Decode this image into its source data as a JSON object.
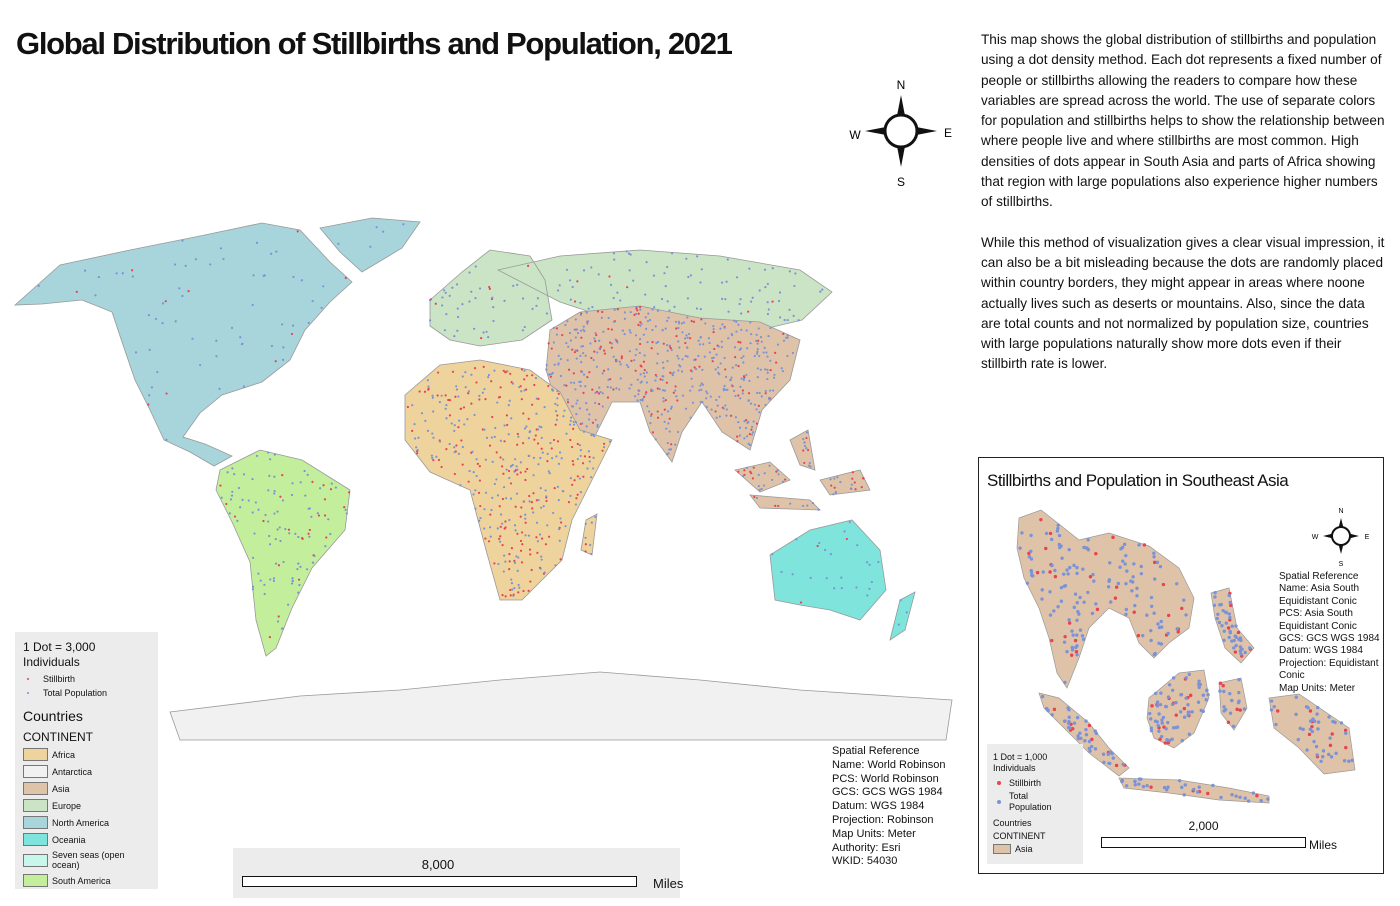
{
  "title": "Global Distribution of Stillbirths and Population, 2021",
  "description": [
    "This map shows the global distribution of stillbirths and population using a dot density method. Each dot represents a fixed number of people or stillbirths allowing the readers to compare how these variables are spread across the world. The use of separate colors for population and stillbirths helps to show the relationship between where people live and where stillbirths are most common. High densities of dots appear in South Asia and parts of Africa showing that region with large populations also experience higher numbers of stillbirths.",
    "While this method of visualization gives a clear visual impression, it can also be a bit misleading because the dots are randomly placed within country borders, they might appear in areas where noone actually lives such as deserts or mountains. Also, since the data are total counts and not normalized by population size, countries with large populations naturally show more dots even if their stillbirth rate is lower."
  ],
  "compass": {
    "n": "N",
    "e": "E",
    "s": "S",
    "w": "W"
  },
  "legend": {
    "dot_title": "1 Dot = 3,000 Individuals",
    "dots": [
      {
        "name": "Stillbirth",
        "color": "#e8434f"
      },
      {
        "name": "Total Population",
        "color": "#7b93d6"
      }
    ],
    "layer_title": "Countries",
    "field_title": "CONTINENT",
    "continents": [
      {
        "name": "Africa",
        "color": "#efd39d"
      },
      {
        "name": "Antarctica",
        "color": "#f1f1f1"
      },
      {
        "name": "Asia",
        "color": "#dfc3a9"
      },
      {
        "name": "Europe",
        "color": "#cbe4c5"
      },
      {
        "name": "North America",
        "color": "#a7d5db"
      },
      {
        "name": "Oceania",
        "color": "#7fe4dc"
      },
      {
        "name": "Seven seas (open ocean)",
        "color": "#c8f6eb"
      },
      {
        "name": "South America",
        "color": "#c3ef9c"
      }
    ]
  },
  "spatial_reference": [
    "Spatial Reference",
    "Name: World Robinson",
    "PCS: World Robinson",
    "GCS: GCS WGS 1984",
    "Datum: WGS 1984",
    "Projection: Robinson",
    "Map Units: Meter",
    "Authority: Esri",
    "WKID: 54030"
  ],
  "scale_bar": {
    "value": "8,000",
    "unit": "Miles"
  },
  "inset": {
    "title": "Stillbirths and Population in Southeast Asia",
    "spatial_reference": [
      "Spatial Reference",
      "Name: Asia South Equidistant Conic",
      "PCS: Asia South Equidistant Conic",
      "GCS: GCS WGS 1984",
      "Datum: WGS 1984",
      "Projection: Equidistant Conic",
      "Map Units: Meter"
    ],
    "legend": {
      "dot_title": "1 Dot = 1,000 Individuals",
      "dots": [
        {
          "name": "Stillbirth"
        },
        {
          "name": "Total Population"
        }
      ],
      "layer_title": "Countries",
      "field_title": "CONTINENT",
      "continent": "Asia"
    },
    "scale_bar": {
      "value": "2,000",
      "unit": "Miles"
    }
  }
}
